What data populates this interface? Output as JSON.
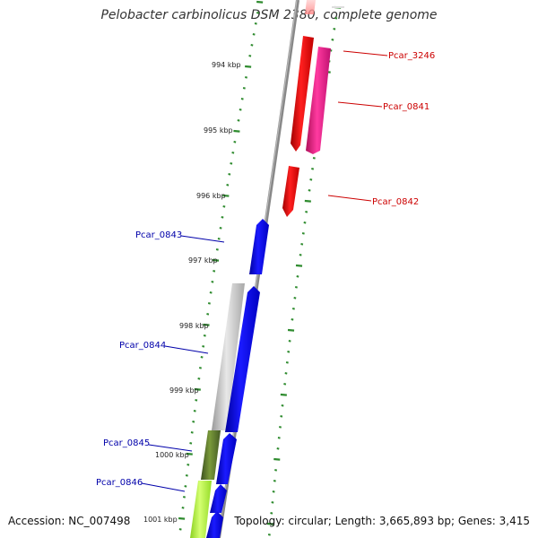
{
  "header": {
    "title": "Pelobacter carbinolicus DSM 2380, complete genome"
  },
  "footer": {
    "accession": "Accession: NC_007498",
    "summary": "Topology: circular; Length: 3,665,893 bp; Genes: 3,415"
  },
  "ruler": {
    "ticks": [
      "994 kbp",
      "995 kbp",
      "996 kbp",
      "997 kbp",
      "998 kbp",
      "999 kbp",
      "1000 kbp",
      "1001 kbp"
    ]
  },
  "genes": [
    {
      "label": "Pcar_3246",
      "color": "#cc0000"
    },
    {
      "label": "Pcar_0841",
      "color": "#cc0000"
    },
    {
      "label": "Pcar_0842",
      "color": "#cc0000"
    },
    {
      "label": "Pcar_0843",
      "color": "#0000aa"
    },
    {
      "label": "Pcar_0844",
      "color": "#0000aa"
    },
    {
      "label": "Pcar_0845",
      "color": "#0000aa"
    },
    {
      "label": "Pcar_0846",
      "color": "#0000aa"
    }
  ],
  "colors": {
    "forward_gene": "#ff0000",
    "forward_gene_alt": "#ff1493",
    "reverse_gene": "#0000ff",
    "backbone": "#888888",
    "cog_gray": "#c0c0c0",
    "cog_olive": "#556b2f",
    "cog_lime": "#adff2f",
    "tick": "#2e8b2e"
  }
}
